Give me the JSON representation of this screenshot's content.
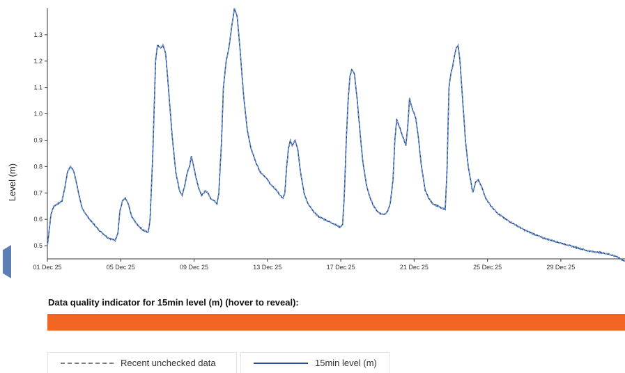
{
  "chart_data": {
    "type": "line",
    "ylabel": "Level (m)",
    "xlabel": "",
    "ylim": [
      0.45,
      1.4
    ],
    "y_ticks": [
      "0.5",
      "0.6",
      "0.7",
      "0.8",
      "0.9",
      "1.0",
      "1.1",
      "1.2",
      "1.3"
    ],
    "x_range_days": [
      0,
      31.5
    ],
    "x_ticks": [
      {
        "label": "01 Dec 25",
        "day": 0
      },
      {
        "label": "05 Dec 25",
        "day": 4
      },
      {
        "label": "09 Dec 25",
        "day": 8
      },
      {
        "label": "13 Dec 25",
        "day": 12
      },
      {
        "label": "17 Dec 25",
        "day": 16
      },
      {
        "label": "21 Dec 25",
        "day": 20
      },
      {
        "label": "25 Dec 25",
        "day": 24
      },
      {
        "label": "29 Dec 25",
        "day": 28
      }
    ],
    "series": [
      {
        "name": "15min level (m)",
        "color": "#1f4e9c",
        "style": "dashed-overlay",
        "points": [
          [
            0.0,
            0.5
          ],
          [
            0.1,
            0.56
          ],
          [
            0.2,
            0.62
          ],
          [
            0.35,
            0.65
          ],
          [
            0.6,
            0.66
          ],
          [
            0.8,
            0.67
          ],
          [
            0.95,
            0.72
          ],
          [
            1.1,
            0.78
          ],
          [
            1.25,
            0.8
          ],
          [
            1.4,
            0.79
          ],
          [
            1.55,
            0.75
          ],
          [
            1.7,
            0.7
          ],
          [
            1.9,
            0.64
          ],
          [
            2.3,
            0.6
          ],
          [
            2.8,
            0.56
          ],
          [
            3.3,
            0.53
          ],
          [
            3.7,
            0.52
          ],
          [
            3.85,
            0.55
          ],
          [
            3.95,
            0.63
          ],
          [
            4.1,
            0.67
          ],
          [
            4.25,
            0.68
          ],
          [
            4.4,
            0.66
          ],
          [
            4.6,
            0.61
          ],
          [
            4.9,
            0.58
          ],
          [
            5.2,
            0.56
          ],
          [
            5.5,
            0.55
          ],
          [
            5.6,
            0.6
          ],
          [
            5.75,
            0.85
          ],
          [
            5.9,
            1.2
          ],
          [
            6.0,
            1.26
          ],
          [
            6.2,
            1.25
          ],
          [
            6.3,
            1.26
          ],
          [
            6.45,
            1.23
          ],
          [
            6.6,
            1.1
          ],
          [
            6.8,
            0.92
          ],
          [
            7.0,
            0.78
          ],
          [
            7.2,
            0.71
          ],
          [
            7.35,
            0.69
          ],
          [
            7.5,
            0.73
          ],
          [
            7.6,
            0.77
          ],
          [
            7.75,
            0.8
          ],
          [
            7.85,
            0.84
          ],
          [
            7.95,
            0.81
          ],
          [
            8.1,
            0.76
          ],
          [
            8.25,
            0.72
          ],
          [
            8.4,
            0.69
          ],
          [
            8.55,
            0.7
          ],
          [
            8.6,
            0.71
          ],
          [
            8.75,
            0.7
          ],
          [
            8.9,
            0.68
          ],
          [
            9.1,
            0.67
          ],
          [
            9.25,
            0.66
          ],
          [
            9.35,
            0.7
          ],
          [
            9.5,
            0.9
          ],
          [
            9.6,
            1.1
          ],
          [
            9.75,
            1.2
          ],
          [
            9.9,
            1.25
          ],
          [
            10.05,
            1.33
          ],
          [
            10.2,
            1.4
          ],
          [
            10.35,
            1.37
          ],
          [
            10.5,
            1.25
          ],
          [
            10.7,
            1.07
          ],
          [
            10.9,
            0.94
          ],
          [
            11.1,
            0.87
          ],
          [
            11.35,
            0.82
          ],
          [
            11.6,
            0.78
          ],
          [
            11.9,
            0.76
          ],
          [
            12.2,
            0.73
          ],
          [
            12.5,
            0.71
          ],
          [
            12.7,
            0.69
          ],
          [
            12.85,
            0.68
          ],
          [
            12.95,
            0.7
          ],
          [
            13.05,
            0.8
          ],
          [
            13.15,
            0.87
          ],
          [
            13.25,
            0.9
          ],
          [
            13.35,
            0.88
          ],
          [
            13.5,
            0.9
          ],
          [
            13.65,
            0.87
          ],
          [
            13.8,
            0.78
          ],
          [
            14.0,
            0.7
          ],
          [
            14.2,
            0.66
          ],
          [
            14.5,
            0.63
          ],
          [
            14.8,
            0.61
          ],
          [
            15.1,
            0.6
          ],
          [
            15.4,
            0.59
          ],
          [
            15.7,
            0.58
          ],
          [
            15.95,
            0.57
          ],
          [
            16.1,
            0.58
          ],
          [
            16.2,
            0.7
          ],
          [
            16.3,
            0.9
          ],
          [
            16.4,
            1.05
          ],
          [
            16.5,
            1.14
          ],
          [
            16.6,
            1.17
          ],
          [
            16.75,
            1.15
          ],
          [
            16.9,
            1.05
          ],
          [
            17.05,
            0.93
          ],
          [
            17.2,
            0.82
          ],
          [
            17.4,
            0.73
          ],
          [
            17.6,
            0.68
          ],
          [
            17.8,
            0.65
          ],
          [
            18.0,
            0.63
          ],
          [
            18.2,
            0.62
          ],
          [
            18.4,
            0.62
          ],
          [
            18.55,
            0.63
          ],
          [
            18.7,
            0.66
          ],
          [
            18.85,
            0.75
          ],
          [
            18.95,
            0.9
          ],
          [
            19.05,
            0.98
          ],
          [
            19.15,
            0.96
          ],
          [
            19.3,
            0.93
          ],
          [
            19.45,
            0.9
          ],
          [
            19.55,
            0.88
          ],
          [
            19.65,
            0.95
          ],
          [
            19.75,
            1.06
          ],
          [
            19.85,
            1.03
          ],
          [
            19.95,
            1.01
          ],
          [
            20.1,
            0.98
          ],
          [
            20.25,
            0.9
          ],
          [
            20.4,
            0.8
          ],
          [
            20.6,
            0.71
          ],
          [
            20.8,
            0.68
          ],
          [
            21.0,
            0.66
          ],
          [
            21.3,
            0.65
          ],
          [
            21.55,
            0.64
          ],
          [
            21.7,
            0.64
          ],
          [
            21.8,
            0.8
          ],
          [
            21.9,
            1.1
          ],
          [
            22.0,
            1.15
          ],
          [
            22.1,
            1.18
          ],
          [
            22.2,
            1.22
          ],
          [
            22.3,
            1.25
          ],
          [
            22.4,
            1.26
          ],
          [
            22.5,
            1.2
          ],
          [
            22.65,
            1.05
          ],
          [
            22.8,
            0.9
          ],
          [
            22.95,
            0.8
          ],
          [
            23.1,
            0.74
          ],
          [
            23.2,
            0.7
          ],
          [
            23.35,
            0.74
          ],
          [
            23.5,
            0.75
          ],
          [
            23.7,
            0.72
          ],
          [
            23.9,
            0.68
          ],
          [
            24.2,
            0.65
          ],
          [
            24.6,
            0.62
          ],
          [
            25.0,
            0.6
          ],
          [
            25.5,
            0.58
          ],
          [
            26.0,
            0.56
          ],
          [
            26.5,
            0.545
          ],
          [
            27.0,
            0.53
          ],
          [
            27.5,
            0.52
          ],
          [
            28.0,
            0.51
          ],
          [
            28.5,
            0.5
          ],
          [
            29.0,
            0.49
          ],
          [
            29.5,
            0.48
          ],
          [
            30.0,
            0.475
          ],
          [
            30.5,
            0.47
          ],
          [
            31.0,
            0.46
          ],
          [
            31.5,
            0.44
          ]
        ]
      }
    ]
  },
  "data_quality": {
    "title": "Data quality indicator for 15min level (m) (hover to reveal):",
    "color": "#f26522"
  },
  "legend": {
    "unchecked_label": "Recent unchecked data",
    "level_label": "15min level (m)"
  }
}
